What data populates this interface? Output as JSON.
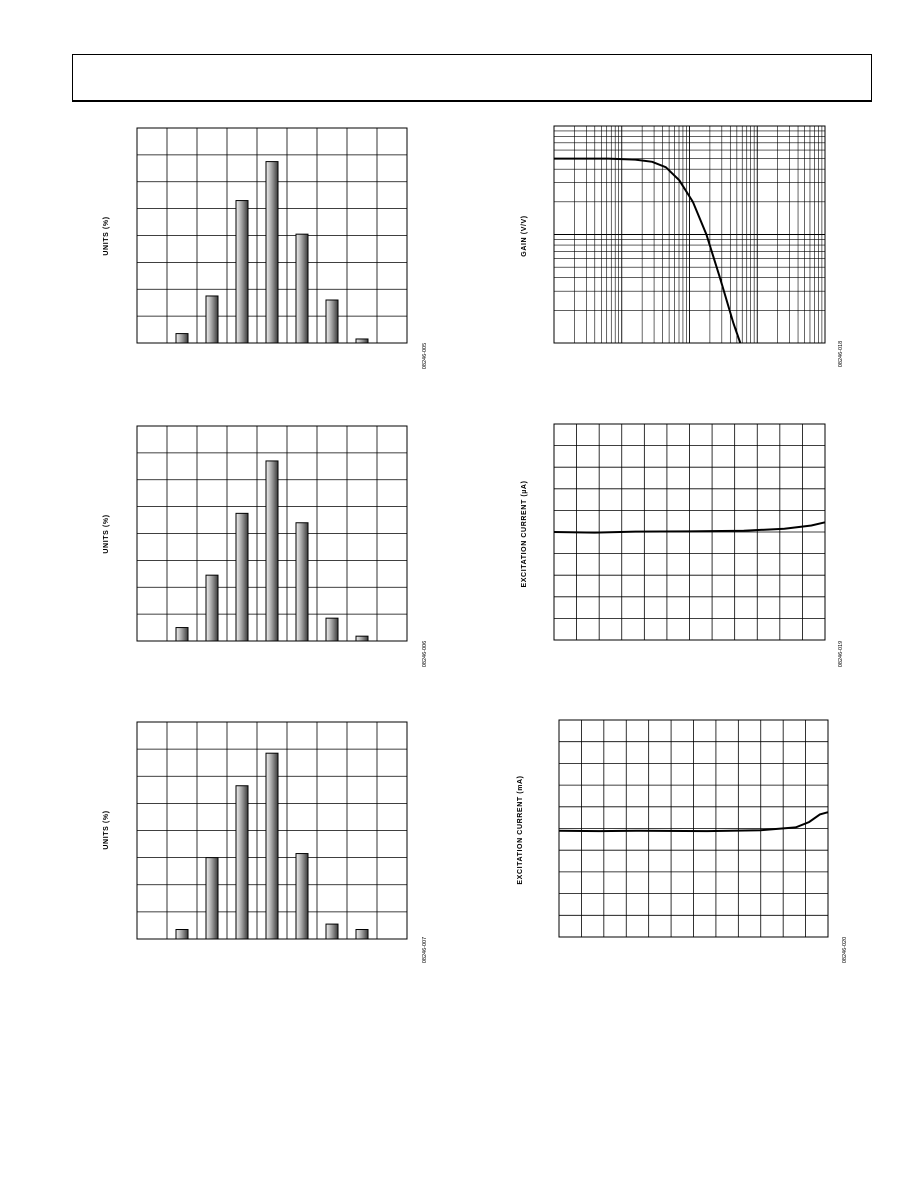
{
  "chart_data": [
    {
      "type": "bar",
      "ylabel": "UNITS (%)",
      "figure_code": "08246-005",
      "categories": [
        "",
        "",
        "",
        "",
        "",
        "",
        "",
        "",
        ""
      ],
      "values": [
        0,
        0.35,
        1.75,
        5.3,
        6.75,
        4.05,
        1.6,
        0.15,
        0
      ],
      "ylim": [
        0,
        8
      ],
      "grid": {
        "cols": 9,
        "rows": 8
      },
      "bar_color": "#808080"
    },
    {
      "type": "bar",
      "ylabel": "UNITS (%)",
      "figure_code": "08246-006",
      "categories": [
        "",
        "",
        "",
        "",
        "",
        "",
        "",
        "",
        ""
      ],
      "values": [
        0,
        0.5,
        2.45,
        4.75,
        6.7,
        4.4,
        0.85,
        0.18,
        0
      ],
      "ylim": [
        0,
        8
      ],
      "grid": {
        "cols": 9,
        "rows": 8
      },
      "bar_color": "#808080"
    },
    {
      "type": "bar",
      "ylabel": "UNITS (%)",
      "figure_code": "08246-007",
      "categories": [
        "",
        "",
        "",
        "",
        "",
        "",
        "",
        "",
        ""
      ],
      "values": [
        0,
        0.35,
        3.0,
        5.65,
        6.85,
        3.15,
        0.55,
        0.35,
        0
      ],
      "ylim": [
        0,
        8
      ],
      "grid": {
        "cols": 9,
        "rows": 8
      },
      "bar_color": "#808080"
    },
    {
      "type": "line",
      "scale": "log-log",
      "ylabel": "GAIN (V/V)",
      "figure_code": "08246-018",
      "decades_x": 4,
      "decades_y": 2,
      "series": [
        {
          "values_decades": [
            [
              0.0,
              1.7
            ],
            [
              0.8,
              1.7
            ],
            [
              1.2,
              1.69
            ],
            [
              1.45,
              1.67
            ],
            [
              1.65,
              1.62
            ],
            [
              1.85,
              1.5
            ],
            [
              2.05,
              1.3
            ],
            [
              2.25,
              1.0
            ],
            [
              2.45,
              0.6
            ],
            [
              2.65,
              0.18
            ],
            [
              2.75,
              0.0
            ]
          ]
        }
      ]
    },
    {
      "type": "line",
      "ylabel": "EXCITATION CURRENT (µA)",
      "figure_code": "08246-019",
      "grid": {
        "cols": 12,
        "rows": 10
      },
      "ylim": [
        0,
        10
      ],
      "xlim": [
        0,
        1
      ],
      "series": [
        {
          "x": [
            0,
            0.15,
            0.3,
            0.5,
            0.7,
            0.85,
            0.95,
            1.0
          ],
          "y": [
            5.0,
            4.97,
            5.02,
            5.03,
            5.06,
            5.15,
            5.3,
            5.45
          ]
        }
      ]
    },
    {
      "type": "line",
      "ylabel": "EXCITATION CURRENT (mA)",
      "figure_code": "08246-020",
      "grid": {
        "cols": 12,
        "rows": 10
      },
      "ylim": [
        0,
        10
      ],
      "xlim": [
        0,
        1
      ],
      "series": [
        {
          "x": [
            0,
            0.15,
            0.3,
            0.55,
            0.75,
            0.88,
            0.93,
            0.97,
            1.0
          ],
          "y": [
            4.9,
            4.88,
            4.9,
            4.88,
            4.92,
            5.05,
            5.3,
            5.65,
            5.75
          ]
        }
      ]
    }
  ]
}
